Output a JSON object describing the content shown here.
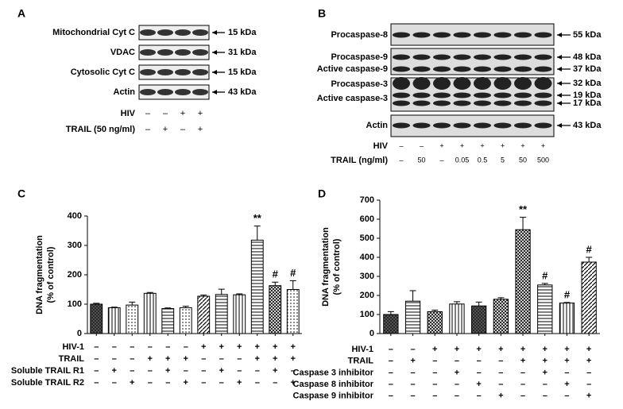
{
  "panels": {
    "A": {
      "letter": "A",
      "rows": [
        {
          "label": "Mitochondrial Cyt C",
          "kda": "15 kDa"
        },
        {
          "label": "VDAC",
          "kda": "31 kDa"
        },
        {
          "label": "Cytosolic Cyt C",
          "kda": "15 kDa"
        },
        {
          "label": "Actin",
          "kda": "43 kDa"
        }
      ],
      "conditions": [
        {
          "name": "HIV",
          "signs": [
            "–",
            "–",
            "+",
            "+"
          ]
        },
        {
          "name": "TRAIL (50 ng/ml)",
          "signs": [
            "–",
            "+",
            "–",
            "+"
          ]
        }
      ]
    },
    "B": {
      "letter": "B",
      "blots": [
        {
          "labels": [
            "Procaspase-8"
          ],
          "markers": [
            "55 kDa"
          ]
        },
        {
          "labels": [
            "Procaspase-9",
            "Active caspase-9"
          ],
          "markers": [
            "48 kDa",
            "37 kDa"
          ]
        },
        {
          "labels": [
            "Procaspase-3",
            "Active caspase-3"
          ],
          "markers": [
            "32 kDa",
            "19 kDa",
            "17 kDa"
          ]
        },
        {
          "labels": [
            "Actin"
          ],
          "markers": [
            "43 kDa"
          ]
        }
      ],
      "conditions": [
        {
          "name": "HIV",
          "signs": [
            "–",
            "–",
            "+",
            "+",
            "+",
            "+",
            "+",
            "+"
          ]
        },
        {
          "name": "TRAIL (ng/ml)",
          "signs": [
            "–",
            "50",
            "–",
            "0.05",
            "0.5",
            "5",
            "50",
            "500"
          ]
        }
      ]
    }
  },
  "chart_data": [
    {
      "type": "bar",
      "panel_label": "C",
      "ylabel_lines": [
        "DNA fragmentation",
        "(% of control)"
      ],
      "color": "#000000",
      "values": [
        100,
        88,
        97,
        137,
        85,
        88,
        127,
        133,
        132,
        318,
        163,
        150
      ],
      "errors": [
        3,
        2,
        10,
        3,
        2,
        5,
        4,
        18,
        3,
        48,
        12,
        30
      ],
      "value_annotations": [
        null,
        null,
        null,
        null,
        null,
        null,
        null,
        null,
        null,
        "**",
        "#",
        "#"
      ],
      "ylim": [
        0,
        400
      ],
      "yticks": [
        0,
        100,
        200,
        300,
        400
      ],
      "conditions": [
        {
          "name": "HIV-1",
          "signs": [
            "–",
            "–",
            "–",
            "–",
            "–",
            "–",
            "+",
            "+",
            "+",
            "+",
            "+",
            "+"
          ]
        },
        {
          "name": "TRAIL",
          "signs": [
            "–",
            "–",
            "–",
            "+",
            "+",
            "+",
            "–",
            "–",
            "–",
            "+",
            "+",
            "+"
          ]
        },
        {
          "name": "Soluble TRAIL R1",
          "signs": [
            "–",
            "+",
            "–",
            "–",
            "+",
            "–",
            "–",
            "+",
            "–",
            "–",
            "+",
            "–"
          ]
        },
        {
          "name": "Soluble TRAIL R2",
          "signs": [
            "–",
            "–",
            "+",
            "–",
            "–",
            "+",
            "–",
            "–",
            "+",
            "–",
            "–",
            "+"
          ]
        }
      ]
    },
    {
      "type": "bar",
      "panel_label": "D",
      "ylabel_lines": [
        "DNA fragmentation",
        "(% of control)"
      ],
      "color": "#000000",
      "values": [
        100,
        170,
        115,
        155,
        145,
        180,
        545,
        255,
        160,
        375
      ],
      "errors": [
        15,
        55,
        8,
        12,
        20,
        8,
        65,
        8,
        3,
        25
      ],
      "value_annotations": [
        null,
        null,
        null,
        null,
        null,
        null,
        "**",
        "#",
        "#",
        "#"
      ],
      "ylim": [
        0,
        700
      ],
      "yticks": [
        0,
        100,
        200,
        300,
        400,
        500,
        600,
        700
      ],
      "conditions": [
        {
          "name": "HIV-1",
          "signs": [
            "–",
            "–",
            "+",
            "+",
            "+",
            "+",
            "+",
            "+",
            "+",
            "+"
          ]
        },
        {
          "name": "TRAIL",
          "signs": [
            "–",
            "+",
            "–",
            "–",
            "–",
            "–",
            "+",
            "+",
            "+",
            "+"
          ]
        },
        {
          "name": "Caspase 3 inhibitor",
          "signs": [
            "–",
            "–",
            "–",
            "+",
            "–",
            "–",
            "–",
            "+",
            "–",
            "–"
          ]
        },
        {
          "name": "Caspase 8 inhibitor",
          "signs": [
            "–",
            "–",
            "–",
            "–",
            "+",
            "–",
            "–",
            "–",
            "+",
            "–"
          ]
        },
        {
          "name": "Caspase 9 inhibitor",
          "signs": [
            "–",
            "–",
            "–",
            "–",
            "–",
            "+",
            "–",
            "–",
            "–",
            "+"
          ]
        }
      ]
    }
  ]
}
